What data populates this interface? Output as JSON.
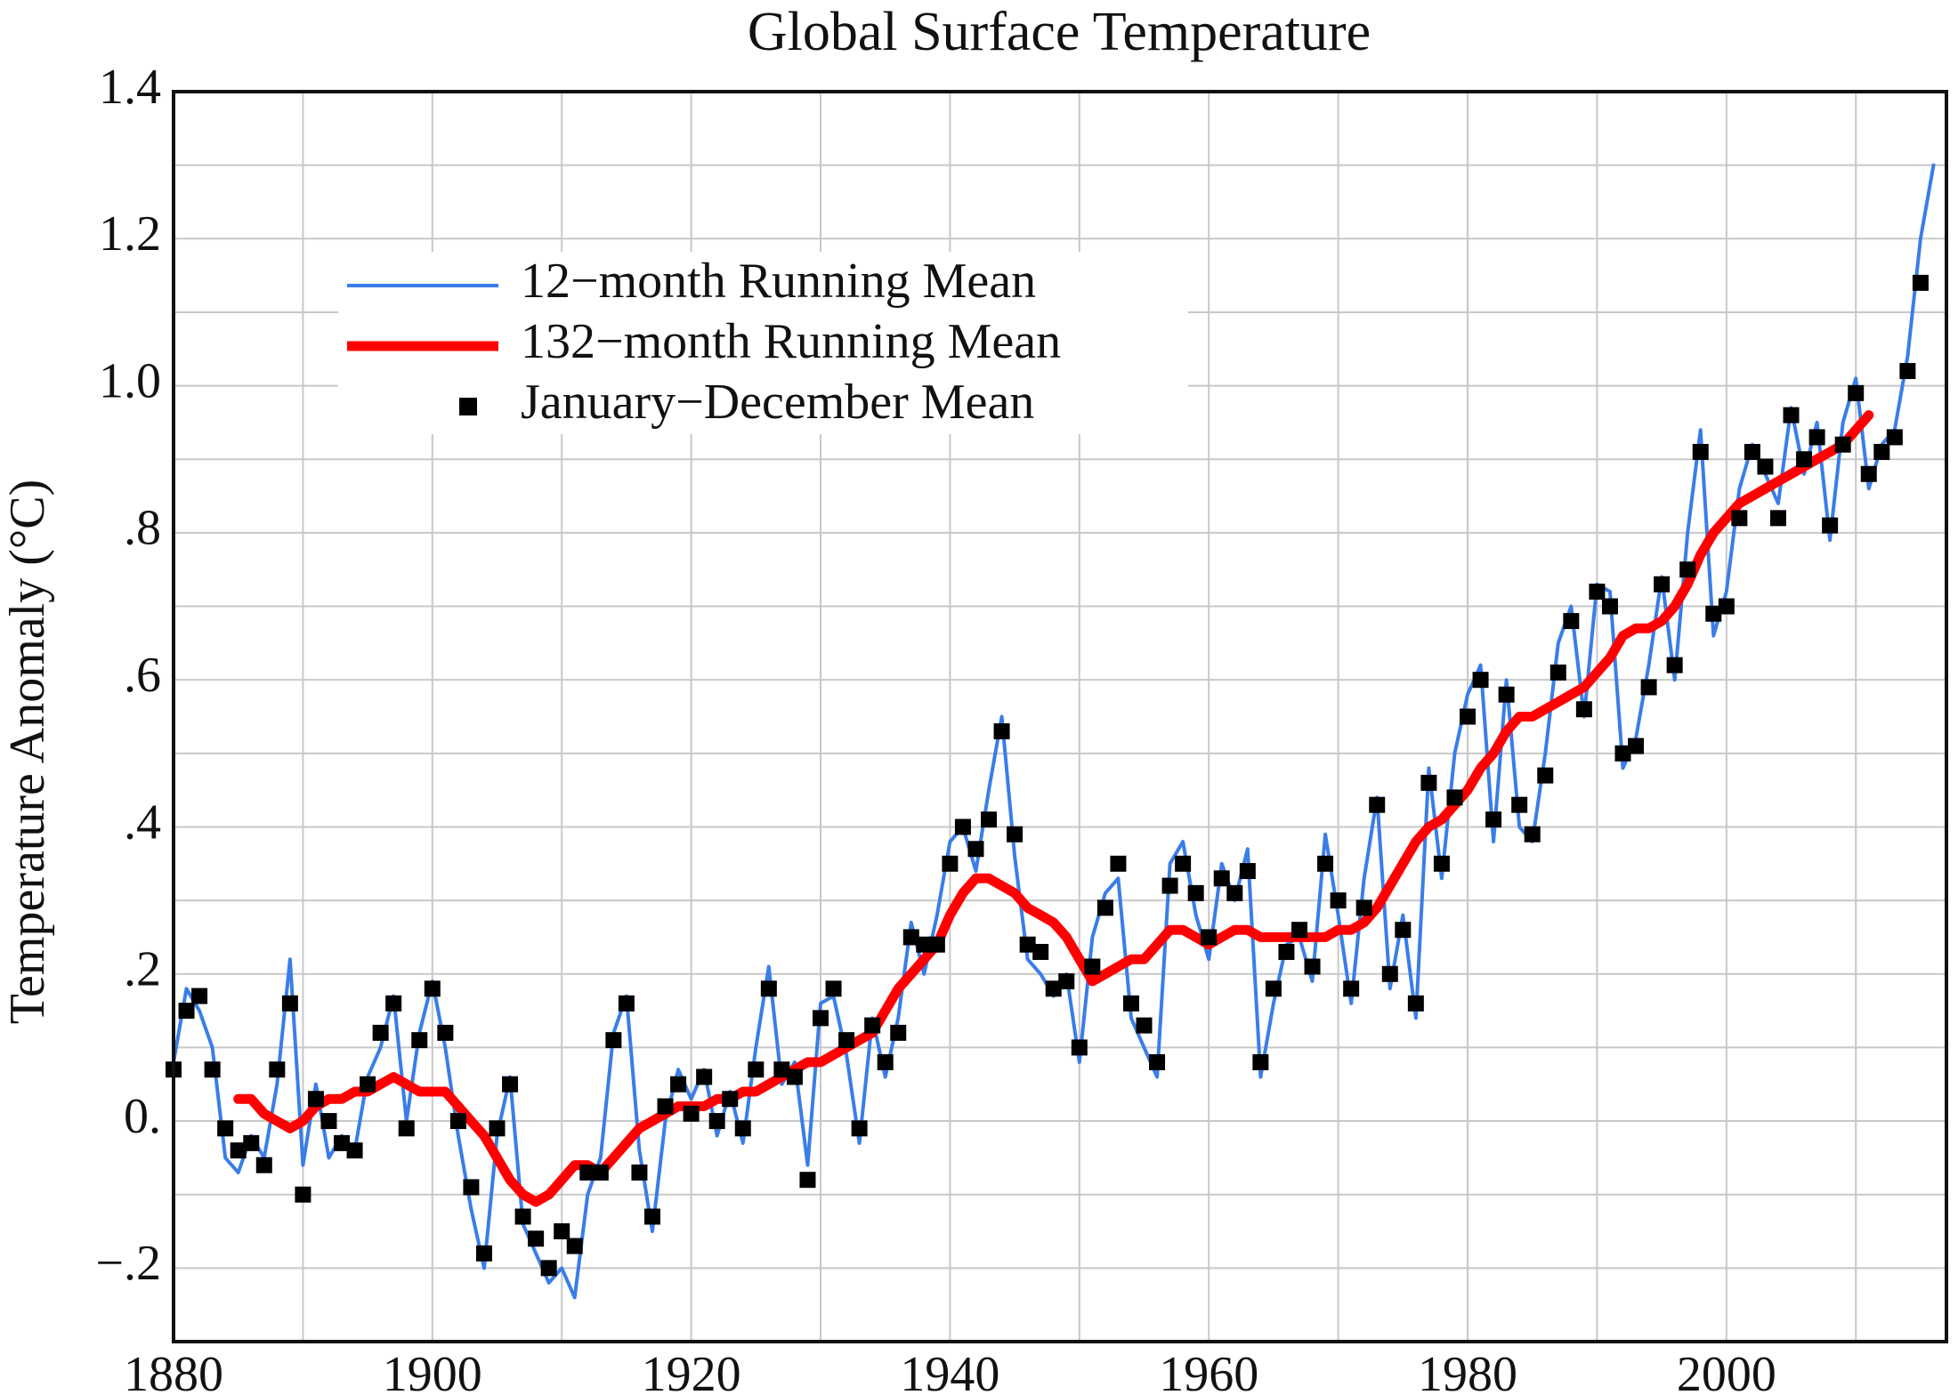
{
  "chart_data": {
    "type": "line",
    "title": "Global Surface Temperature",
    "ylabel": "Temperature Anomaly (°C)",
    "x": [
      1880,
      1881,
      1882,
      1883,
      1884,
      1885,
      1886,
      1887,
      1888,
      1889,
      1890,
      1891,
      1892,
      1893,
      1894,
      1895,
      1896,
      1897,
      1898,
      1899,
      1900,
      1901,
      1902,
      1903,
      1904,
      1905,
      1906,
      1907,
      1908,
      1909,
      1910,
      1911,
      1912,
      1913,
      1914,
      1915,
      1916,
      1917,
      1918,
      1919,
      1920,
      1921,
      1922,
      1923,
      1924,
      1925,
      1926,
      1927,
      1928,
      1929,
      1930,
      1931,
      1932,
      1933,
      1934,
      1935,
      1936,
      1937,
      1938,
      1939,
      1940,
      1941,
      1942,
      1943,
      1944,
      1945,
      1946,
      1947,
      1948,
      1949,
      1950,
      1951,
      1952,
      1953,
      1954,
      1955,
      1956,
      1957,
      1958,
      1959,
      1960,
      1961,
      1962,
      1963,
      1964,
      1965,
      1966,
      1967,
      1968,
      1969,
      1970,
      1971,
      1972,
      1973,
      1974,
      1975,
      1976,
      1977,
      1978,
      1979,
      1980,
      1981,
      1982,
      1983,
      1984,
      1985,
      1986,
      1987,
      1988,
      1989,
      1990,
      1991,
      1992,
      1993,
      1994,
      1995,
      1996,
      1997,
      1998,
      1999,
      2000,
      2001,
      2002,
      2003,
      2004,
      2005,
      2006,
      2007,
      2008,
      2009,
      2010,
      2011,
      2012,
      2013,
      2014,
      2015,
      2016
    ],
    "series": [
      {
        "name": "12−month Running Mean",
        "color": "#3a7de8",
        "mark": "line",
        "values": [
          0.08,
          0.18,
          0.15,
          0.1,
          -0.05,
          -0.07,
          -0.02,
          -0.05,
          0.05,
          0.22,
          -0.06,
          0.05,
          -0.05,
          -0.02,
          -0.04,
          0.06,
          0.1,
          0.17,
          0.0,
          0.12,
          0.19,
          0.1,
          -0.02,
          -0.12,
          -0.2,
          -0.02,
          0.06,
          -0.14,
          -0.18,
          -0.22,
          -0.2,
          -0.24,
          -0.1,
          -0.05,
          0.12,
          0.17,
          -0.04,
          -0.15,
          0.0,
          0.07,
          0.03,
          0.07,
          -0.02,
          0.04,
          -0.03,
          0.1,
          0.21,
          0.05,
          0.08,
          -0.06,
          0.16,
          0.17,
          0.09,
          -0.03,
          0.14,
          0.06,
          0.14,
          0.27,
          0.2,
          0.28,
          0.38,
          0.4,
          0.34,
          0.45,
          0.55,
          0.36,
          0.22,
          0.2,
          0.17,
          0.2,
          0.08,
          0.25,
          0.31,
          0.33,
          0.14,
          0.1,
          0.06,
          0.35,
          0.38,
          0.28,
          0.22,
          0.35,
          0.3,
          0.37,
          0.06,
          0.16,
          0.24,
          0.25,
          0.19,
          0.39,
          0.28,
          0.16,
          0.33,
          0.44,
          0.18,
          0.28,
          0.14,
          0.48,
          0.33,
          0.5,
          0.58,
          0.62,
          0.38,
          0.6,
          0.4,
          0.38,
          0.5,
          0.65,
          0.7,
          0.55,
          0.73,
          0.72,
          0.48,
          0.52,
          0.62,
          0.74,
          0.6,
          0.8,
          0.94,
          0.66,
          0.72,
          0.86,
          0.92,
          0.88,
          0.84,
          0.97,
          0.88,
          0.95,
          0.79,
          0.95,
          1.01,
          0.86,
          0.92,
          0.94,
          1.04,
          1.2,
          1.3
        ]
      },
      {
        "name": "132−month Running Mean",
        "color": "#ff0000",
        "mark": "line",
        "values": [
          null,
          null,
          null,
          null,
          null,
          0.03,
          0.03,
          0.01,
          0.0,
          -0.01,
          0.0,
          0.02,
          0.03,
          0.03,
          0.04,
          0.04,
          0.05,
          0.06,
          0.05,
          0.04,
          0.04,
          0.04,
          0.02,
          0.0,
          -0.02,
          -0.05,
          -0.08,
          -0.1,
          -0.11,
          -0.1,
          -0.08,
          -0.06,
          -0.06,
          -0.07,
          -0.05,
          -0.03,
          -0.01,
          0.0,
          0.01,
          0.02,
          0.02,
          0.02,
          0.03,
          0.03,
          0.04,
          0.04,
          0.05,
          0.06,
          0.07,
          0.08,
          0.08,
          0.09,
          0.1,
          0.11,
          0.12,
          0.15,
          0.18,
          0.2,
          0.22,
          0.24,
          0.28,
          0.31,
          0.33,
          0.33,
          0.32,
          0.31,
          0.29,
          0.28,
          0.27,
          0.25,
          0.22,
          0.19,
          0.2,
          0.21,
          0.22,
          0.22,
          0.24,
          0.26,
          0.26,
          0.25,
          0.24,
          0.25,
          0.26,
          0.26,
          0.25,
          0.25,
          0.25,
          0.25,
          0.25,
          0.25,
          0.26,
          0.26,
          0.27,
          0.29,
          0.32,
          0.35,
          0.38,
          0.4,
          0.41,
          0.43,
          0.45,
          0.48,
          0.5,
          0.53,
          0.55,
          0.55,
          0.56,
          0.57,
          0.58,
          0.59,
          0.61,
          0.63,
          0.66,
          0.67,
          0.67,
          0.68,
          0.7,
          0.73,
          0.77,
          0.8,
          0.82,
          0.84,
          0.85,
          0.86,
          0.87,
          0.88,
          0.89,
          0.9,
          0.91,
          0.92,
          0.94,
          0.96,
          null,
          null,
          null,
          null,
          null
        ]
      },
      {
        "name": "January−December Mean",
        "color": "#000000",
        "mark": "square",
        "values": [
          0.07,
          0.15,
          0.17,
          0.07,
          -0.01,
          -0.04,
          -0.03,
          -0.06,
          0.07,
          0.16,
          -0.1,
          0.03,
          0.0,
          -0.03,
          -0.04,
          0.05,
          0.12,
          0.16,
          -0.01,
          0.11,
          0.18,
          0.12,
          0.0,
          -0.09,
          -0.18,
          -0.01,
          0.05,
          -0.13,
          -0.16,
          -0.2,
          -0.15,
          -0.17,
          -0.07,
          -0.07,
          0.11,
          0.16,
          -0.07,
          -0.13,
          0.02,
          0.05,
          0.01,
          0.06,
          0.0,
          0.03,
          -0.01,
          0.07,
          0.18,
          0.07,
          0.06,
          -0.08,
          0.14,
          0.18,
          0.11,
          -0.01,
          0.13,
          0.08,
          0.12,
          0.25,
          0.24,
          0.24,
          0.35,
          0.4,
          0.37,
          0.41,
          0.53,
          0.39,
          0.24,
          0.23,
          0.18,
          0.19,
          0.1,
          0.21,
          0.29,
          0.35,
          0.16,
          0.13,
          0.08,
          0.32,
          0.35,
          0.31,
          0.25,
          0.33,
          0.31,
          0.34,
          0.08,
          0.18,
          0.23,
          0.26,
          0.21,
          0.35,
          0.3,
          0.18,
          0.29,
          0.43,
          0.2,
          0.26,
          0.16,
          0.46,
          0.35,
          0.44,
          0.55,
          0.6,
          0.41,
          0.58,
          0.43,
          0.39,
          0.47,
          0.61,
          0.68,
          0.56,
          0.72,
          0.7,
          0.5,
          0.51,
          0.59,
          0.73,
          0.62,
          0.75,
          0.91,
          0.69,
          0.7,
          0.82,
          0.91,
          0.89,
          0.82,
          0.96,
          0.9,
          0.93,
          0.81,
          0.92,
          0.99,
          0.88,
          0.91,
          0.93,
          1.02,
          1.14,
          null
        ]
      }
    ],
    "xlim": [
      1880,
      2017
    ],
    "xticks": [
      1880,
      1900,
      1920,
      1940,
      1960,
      1980,
      2000
    ],
    "xgrid_minor": [
      1890,
      1910,
      1930,
      1950,
      1970,
      1990,
      2010
    ],
    "ylim": [
      -0.3,
      1.4
    ],
    "yticks": [
      1.4,
      1.2,
      {
        "value": 1.0,
        "label": "1.0"
      },
      {
        "value": 0.8,
        "label": ".8"
      },
      {
        "value": 0.6,
        "label": ".6"
      },
      {
        "value": 0.4,
        "label": ".4"
      },
      {
        "value": 0.2,
        "label": ".2"
      },
      {
        "value": 0,
        "label": "0."
      },
      {
        "value": -0.2,
        "label": "−.2"
      }
    ],
    "ygrid_minor": [
      1.3,
      1.1,
      0.9,
      0.7,
      0.5,
      0.3,
      0.1,
      -0.1
    ],
    "grid": true,
    "legend": "upper left"
  }
}
